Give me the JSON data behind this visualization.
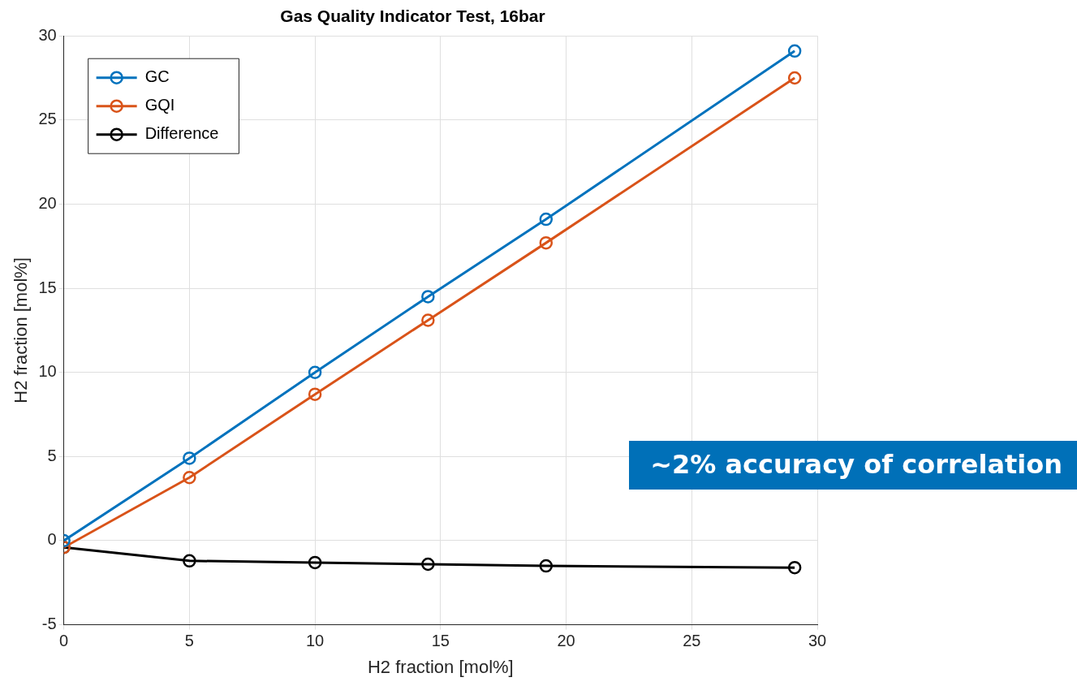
{
  "chart_data": {
    "type": "line",
    "title": "Gas Quality Indicator Test, 16bar",
    "xlabel": "H2 fraction [mol%]",
    "ylabel": "H2 fraction [mol%]",
    "x": [
      0,
      5,
      10,
      14.5,
      19.2,
      29.1
    ],
    "series": [
      {
        "name": "GC",
        "color": "#0072bd",
        "values": [
          0,
          4.9,
          10,
          14.5,
          19.1,
          29.1
        ]
      },
      {
        "name": "GQI",
        "color": "#d95319",
        "values": [
          -0.4,
          3.75,
          8.7,
          13.1,
          17.7,
          27.5
        ]
      },
      {
        "name": "Difference",
        "color": "#000000",
        "values": [
          -0.4,
          -1.2,
          -1.3,
          -1.4,
          -1.5,
          -1.6
        ]
      }
    ],
    "xlim": [
      0,
      30
    ],
    "xticks": [
      0,
      5,
      10,
      15,
      20,
      25,
      30
    ],
    "ylim": [
      -5,
      30
    ],
    "yticks": [
      -5,
      0,
      5,
      10,
      15,
      20,
      25,
      30
    ],
    "grid": true,
    "legend": "top left",
    "marker": "circle",
    "line_style": "solid",
    "annotations": [
      "~2% accuracy of correlation"
    ]
  }
}
